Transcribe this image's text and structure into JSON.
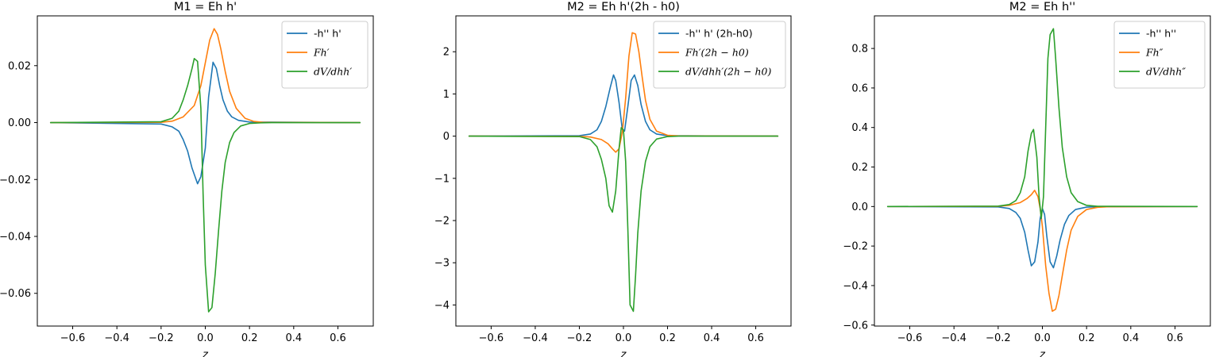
{
  "chart_data": [
    {
      "type": "line",
      "title": "M1 = Eh h'",
      "xlabel": "z",
      "ylabel": "",
      "xlim": [
        -0.76,
        0.76
      ],
      "ylim": [
        -0.0715,
        0.0375
      ],
      "xticks": [
        -0.6,
        -0.4,
        -0.2,
        0.0,
        0.2,
        0.4,
        0.6
      ],
      "xtick_labels": [
        "−0.6",
        "−0.4",
        "−0.2",
        "0.0",
        "0.2",
        "0.4",
        "0.6"
      ],
      "yticks": [
        -0.06,
        -0.04,
        -0.02,
        0.0,
        0.02
      ],
      "ytick_labels": [
        "−0.06",
        "−0.04",
        "−0.02",
        "0.00",
        "0.02"
      ],
      "legend": "top-right",
      "grid": false,
      "series": [
        {
          "name": "-h'' h'",
          "color": "#1f77b4",
          "x": [
            -0.7,
            -0.2,
            -0.15,
            -0.12,
            -0.1,
            -0.08,
            -0.06,
            -0.035,
            -0.02,
            0.0,
            0.015,
            0.035,
            0.05,
            0.065,
            0.08,
            0.1,
            0.12,
            0.15,
            0.2,
            0.7
          ],
          "y": [
            0,
            -0.0005,
            -0.0015,
            -0.003,
            -0.006,
            -0.01,
            -0.016,
            -0.0215,
            -0.019,
            -0.009,
            0.009,
            0.0212,
            0.019,
            0.013,
            0.008,
            0.004,
            0.002,
            0.0008,
            0.0002,
            0
          ]
        },
        {
          "name": "Fh′",
          "color": "#ff7f0e",
          "x": [
            -0.7,
            -0.2,
            -0.15,
            -0.1,
            -0.05,
            -0.02,
            0.0,
            0.02,
            0.04,
            0.055,
            0.07,
            0.09,
            0.11,
            0.14,
            0.18,
            0.22,
            0.26,
            0.7
          ],
          "y": [
            0,
            0.0001,
            0.0005,
            0.002,
            0.006,
            0.013,
            0.021,
            0.029,
            0.033,
            0.031,
            0.026,
            0.018,
            0.011,
            0.005,
            0.0015,
            0.0004,
            0.0001,
            0
          ]
        },
        {
          "name": "dV/dhh′",
          "color": "#2ca02c",
          "x": [
            -0.7,
            -0.2,
            -0.15,
            -0.12,
            -0.1,
            -0.08,
            -0.06,
            -0.05,
            -0.035,
            -0.02,
            -0.01,
            0.0,
            0.015,
            0.03,
            0.045,
            0.06,
            0.075,
            0.09,
            0.11,
            0.13,
            0.16,
            0.2,
            0.25,
            0.3,
            0.7
          ],
          "y": [
            0,
            0.0003,
            0.0015,
            0.004,
            0.008,
            0.013,
            0.019,
            0.0225,
            0.0215,
            0.005,
            -0.025,
            -0.05,
            -0.0665,
            -0.065,
            -0.053,
            -0.038,
            -0.024,
            -0.014,
            -0.007,
            -0.0035,
            -0.0012,
            -0.0003,
            -0.0001,
            0,
            0
          ]
        }
      ]
    },
    {
      "type": "line",
      "title": "M2 = Eh h'(2h - h0)",
      "xlabel": "z",
      "ylabel": "",
      "xlim": [
        -0.76,
        0.76
      ],
      "ylim": [
        -4.5,
        2.85
      ],
      "xticks": [
        -0.6,
        -0.4,
        -0.2,
        0.0,
        0.2,
        0.4,
        0.6
      ],
      "xtick_labels": [
        "−0.6",
        "−0.4",
        "−0.2",
        "0.0",
        "0.2",
        "0.4",
        "0.6"
      ],
      "yticks": [
        -4,
        -3,
        -2,
        -1,
        0,
        1,
        2
      ],
      "ytick_labels": [
        "−4",
        "−3",
        "−2",
        "−1",
        "0",
        "1",
        "2"
      ],
      "legend": "top-right",
      "grid": false,
      "series": [
        {
          "name": "-h'' h' (2h-h0)",
          "color": "#1f77b4",
          "x": [
            -0.7,
            -0.2,
            -0.15,
            -0.12,
            -0.1,
            -0.08,
            -0.06,
            -0.045,
            -0.035,
            -0.02,
            -0.005,
            0.005,
            0.02,
            0.035,
            0.05,
            0.065,
            0.08,
            0.1,
            0.12,
            0.15,
            0.2,
            0.7
          ],
          "y": [
            0,
            0.01,
            0.05,
            0.15,
            0.35,
            0.7,
            1.15,
            1.45,
            1.32,
            0.8,
            0.15,
            0.12,
            0.7,
            1.32,
            1.45,
            1.2,
            0.75,
            0.35,
            0.15,
            0.05,
            0.01,
            0
          ]
        },
        {
          "name": "Fh′(2h − h0)",
          "color": "#ff7f0e",
          "x": [
            -0.7,
            -0.2,
            -0.15,
            -0.1,
            -0.07,
            -0.05,
            -0.035,
            -0.02,
            -0.005,
            0.01,
            0.025,
            0.04,
            0.055,
            0.07,
            0.085,
            0.1,
            0.12,
            0.15,
            0.2,
            0.25,
            0.7
          ],
          "y": [
            0,
            -0.005,
            -0.02,
            -0.08,
            -0.18,
            -0.3,
            -0.38,
            -0.3,
            0.1,
            0.9,
            1.9,
            2.45,
            2.42,
            2.0,
            1.4,
            0.85,
            0.4,
            0.12,
            0.02,
            0.005,
            0
          ]
        },
        {
          "name": "dV/dhh′(2h − h0)",
          "color": "#2ca02c",
          "x": [
            -0.7,
            -0.2,
            -0.15,
            -0.12,
            -0.1,
            -0.08,
            -0.065,
            -0.05,
            -0.035,
            -0.02,
            -0.01,
            0.0,
            0.01,
            0.02,
            0.03,
            0.045,
            0.055,
            0.065,
            0.08,
            0.1,
            0.12,
            0.15,
            0.2,
            0.25,
            0.7
          ],
          "y": [
            0,
            -0.01,
            -0.08,
            -0.25,
            -0.55,
            -1.0,
            -1.65,
            -1.8,
            -1.3,
            -0.3,
            0.2,
            0.15,
            -0.6,
            -2.2,
            -4.0,
            -4.15,
            -3.3,
            -2.3,
            -1.3,
            -0.6,
            -0.25,
            -0.07,
            -0.01,
            0,
            0
          ]
        }
      ]
    },
    {
      "type": "line",
      "title": "M2 = Eh h''",
      "xlabel": "z",
      "ylabel": "",
      "xlim": [
        -0.76,
        0.76
      ],
      "ylim": [
        -0.605,
        0.965
      ],
      "xticks": [
        -0.6,
        -0.4,
        -0.2,
        0.0,
        0.2,
        0.4,
        0.6
      ],
      "xtick_labels": [
        "−0.6",
        "−0.4",
        "−0.2",
        "0.0",
        "0.2",
        "0.4",
        "0.6"
      ],
      "yticks": [
        -0.6,
        -0.4,
        -0.2,
        0.0,
        0.2,
        0.4,
        0.6,
        0.8
      ],
      "ytick_labels": [
        "−0.6",
        "−0.4",
        "−0.2",
        "0.0",
        "0.2",
        "0.4",
        "0.6",
        "0.8"
      ],
      "legend": "top-right",
      "grid": false,
      "series": [
        {
          "name": "-h'' h''",
          "color": "#1f77b4",
          "x": [
            -0.7,
            -0.2,
            -0.15,
            -0.12,
            -0.1,
            -0.08,
            -0.065,
            -0.05,
            -0.035,
            -0.02,
            -0.01,
            0.0,
            0.01,
            0.02,
            0.035,
            0.05,
            0.065,
            0.08,
            0.1,
            0.12,
            0.15,
            0.2,
            0.25,
            0.7
          ],
          "y": [
            0,
            -0.002,
            -0.01,
            -0.03,
            -0.06,
            -0.13,
            -0.22,
            -0.3,
            -0.28,
            -0.18,
            -0.06,
            -0.01,
            -0.04,
            -0.15,
            -0.28,
            -0.31,
            -0.25,
            -0.17,
            -0.09,
            -0.045,
            -0.015,
            -0.003,
            -0.001,
            0
          ]
        },
        {
          "name": "Fh″",
          "color": "#ff7f0e",
          "x": [
            -0.7,
            -0.2,
            -0.15,
            -0.1,
            -0.07,
            -0.05,
            -0.035,
            -0.02,
            -0.01,
            0.0,
            0.015,
            0.03,
            0.045,
            0.06,
            0.075,
            0.09,
            0.11,
            0.13,
            0.16,
            0.2,
            0.25,
            0.3,
            0.7
          ],
          "y": [
            0,
            0.001,
            0.006,
            0.02,
            0.04,
            0.06,
            0.082,
            0.05,
            -0.01,
            -0.1,
            -0.3,
            -0.44,
            -0.53,
            -0.52,
            -0.45,
            -0.35,
            -0.22,
            -0.12,
            -0.05,
            -0.015,
            -0.004,
            -0.001,
            0
          ]
        },
        {
          "name": "dV/dhh″",
          "color": "#2ca02c",
          "x": [
            -0.7,
            -0.2,
            -0.15,
            -0.12,
            -0.1,
            -0.08,
            -0.065,
            -0.05,
            -0.04,
            -0.025,
            -0.015,
            -0.005,
            0.005,
            0.015,
            0.025,
            0.035,
            0.05,
            0.06,
            0.075,
            0.09,
            0.11,
            0.13,
            0.16,
            0.2,
            0.25,
            0.7
          ],
          "y": [
            0,
            0.002,
            0.01,
            0.03,
            0.07,
            0.15,
            0.28,
            0.37,
            0.39,
            0.25,
            0.05,
            -0.06,
            0.05,
            0.4,
            0.75,
            0.87,
            0.9,
            0.75,
            0.5,
            0.3,
            0.15,
            0.07,
            0.025,
            0.006,
            0.001,
            0
          ]
        }
      ]
    }
  ]
}
